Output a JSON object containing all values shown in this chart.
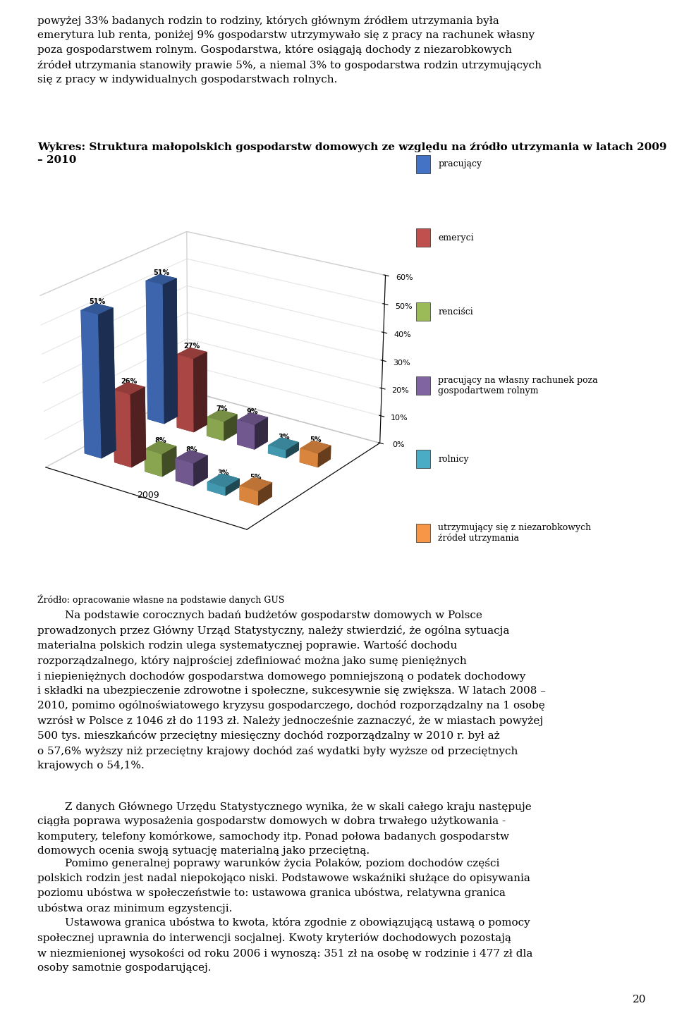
{
  "para1": "powyżej 33% badanych rodzin to rodziny, których głównym źródłem utrzymania była emerytura lub renta, poniżej 9% gospodarstw utrzymywało się z pracy na rachunek własny poza gospodarstwem rolnym. Gospodarstwa, które osiągają dochody z niezarobkowych źródeł utrzymania stanowiły prawie 5%, a niemal 3% to gospodarstwa rodzin utrzymujących się z pracy w indywidualnych gospodarstwach rolnych.",
  "chart_title": "Wykres: Struktura małopolskich gospodarstw domowych ze względu na źródło utrzymania w latach 2009\n– 2010",
  "source_label": "Źródło: opracowanie własne na podstawie danych GUS",
  "para2": "Na podstawie corocznych badań budżetów gospodarstw domowych w Polsce prowadzonych przez Główny Urząd Statystyczny, należy stwierdzić, że ogólna sytuacja materialna polskich rodzin ulega systematycznej poprawie. Wartość dochodu rozporządzalnego, który najprościej zdefiniować można jako sumę pieniężnych i niepieniężnych dochodów gospodarstwa domowego pomniejszoną o podatek dochodowy i składki na ubezpieczenie zdrowotne i społeczne, sukcesywnie się zwiększa. W latach 2008 – 2010, pomimo ogólnoświatowego kryzysu gospodarczego, dochód rozporządzalny na 1 osobę wzrósł w Polsce z 1046 zł do 1193 zł. Należy jednocześnie zaznaczyć, że w miastach powyżej 500 tys. mieszkańców przeciętny miesięczny dochód rozporządzalny w 2010 r. był aż o 57,6% wyższy niż przeciętny krajowy dochód zaś wydatki były wyższe od przeciętnych krajowych o 54,1%.",
  "para3": "Z danych Głównego Urzędu Statystycznego wynika, że w skali całego kraju następuje ciągła poprawa wyposażenia gospodarstw domowych w dobra trwałego użytkowania - komputery, telefony komórkowe, samochody itp. Ponad połowa badanych gospodarstw domowych ocenia swoją sytuację materialną jako przeciętną.",
  "para4": "Pomimo generalnej poprawy warunków życia Polaków, poziom dochodów części polskich rodzin jest nadal niepokojąco niski. Podstawowe wskaźniki służące do opisywania poziomu ubóstwa w społeczeństwie to: ustawowa granica ubóstwa, relatywna granica ubóstwa oraz minimum egzystencji.",
  "para5": "Ustawowa granica ubóstwa to kwota, która zgodnie z obowiązującą ustawą o pomocy społecznej uprawnia do interwencji socjalnej. Kwoty kryteriów dochodowych pozostają w niezmienionej wysokości od roku 2006 i wynoszą: 351 zł na osobę w rodzinie i 477 zł dla osoby samotnie gospodarującej.",
  "page_number": "20",
  "categories": [
    "pracujący",
    "emeryci",
    "renciści",
    "pracujący na własny rachunek poza\ngospodartwem rolnym",
    "rolnicy",
    "utrzymujący się z niezarobkowych\nźródeł utrzymania"
  ],
  "values_2009": [
    51,
    26,
    8,
    8,
    3,
    5
  ],
  "values_2010": [
    51,
    27,
    7,
    9,
    3,
    5
  ],
  "colors": [
    "#4472C4",
    "#C0504D",
    "#9BBB59",
    "#8064A2",
    "#4BACC6",
    "#F79646"
  ],
  "yticks": [
    0,
    10,
    20,
    30,
    40,
    50,
    60
  ],
  "ytick_labels": [
    "0%",
    "10%",
    "20%",
    "30%",
    "40%",
    "50%",
    "60%"
  ],
  "figure_width": 9.6,
  "figure_height": 14.54,
  "body_fontsize": 11,
  "chart_title_fontsize": 11,
  "source_fontsize": 9,
  "legend_fontsize": 9
}
